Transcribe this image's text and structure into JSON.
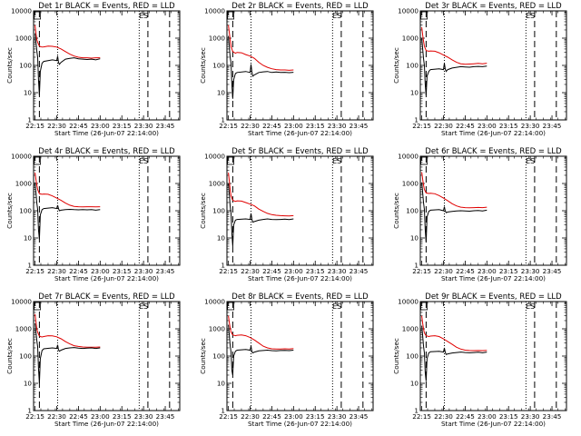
{
  "colors": {
    "events": "#000000",
    "lld": "#e00000",
    "axis": "#000000",
    "background": "#ffffff"
  },
  "x_ticks": [
    {
      "t": 0.0,
      "label": "22:15"
    },
    {
      "t": 0.25,
      "label": "22:30"
    },
    {
      "t": 0.5,
      "label": "22:45"
    },
    {
      "t": 0.75,
      "label": "23:00"
    },
    {
      "t": 1.0,
      "label": "23:15"
    },
    {
      "t": 1.25,
      "label": "23:30"
    },
    {
      "t": 1.5,
      "label": "23:45"
    }
  ],
  "xlim": [
    -0.017,
    1.667
  ],
  "y_ticks": [
    {
      "v": 1,
      "label": "1"
    },
    {
      "v": 10,
      "label": "10"
    },
    {
      "v": 100,
      "label": "100"
    },
    {
      "v": 1000,
      "label": "1000"
    },
    {
      "v": 10000,
      "label": "10000"
    }
  ],
  "ylim": [
    1,
    10000
  ],
  "y_scale": "log",
  "xlabel": "Start Time (26-Jun-07 22:14:00)",
  "ylabel": "Counts/sec",
  "markers": {
    "dashed": [
      0.05,
      1.3,
      1.55
    ],
    "dotted": [
      0.26,
      1.2
    ],
    "es_label": "ES",
    "es_time": 1.25,
    "small_box_time": 0.0
  },
  "chart_data": [
    {
      "type": "line",
      "title": "Det 1r BLACK = Events, RED = LLD",
      "series": [
        {
          "x": [
            0.0,
            0.01,
            0.02,
            0.03,
            0.045,
            0.06,
            0.08,
            0.1,
            0.15,
            0.2,
            0.25,
            0.3,
            0.35,
            0.4,
            0.45,
            0.5,
            0.55,
            0.6,
            0.65,
            0.7,
            0.75
          ],
          "values": [
            3000,
            1500,
            900,
            700,
            550,
            490,
            470,
            480,
            510,
            500,
            470,
            400,
            320,
            260,
            220,
            200,
            190,
            190,
            185,
            190,
            190
          ]
        },
        {
          "x": [
            0.0,
            0.01,
            0.02,
            0.03,
            0.04,
            0.05,
            0.06,
            0.08,
            0.1,
            0.2,
            0.25,
            0.26,
            0.27,
            0.28,
            0.3,
            0.35,
            0.4,
            0.45,
            0.5,
            0.55,
            0.6,
            0.65,
            0.7,
            0.75
          ],
          "values": [
            1500,
            700,
            350,
            200,
            30,
            8,
            60,
            120,
            140,
            160,
            150,
            220,
            130,
            110,
            130,
            170,
            180,
            190,
            175,
            170,
            165,
            170,
            160,
            175
          ]
        }
      ]
    },
    {
      "type": "line",
      "title": "Det 2r BLACK = Events, RED = LLD",
      "series": [
        {
          "x": [
            0.0,
            0.01,
            0.02,
            0.03,
            0.05,
            0.08,
            0.1,
            0.15,
            0.2,
            0.25,
            0.3,
            0.35,
            0.4,
            0.45,
            0.5,
            0.55,
            0.6,
            0.65,
            0.7,
            0.75
          ],
          "values": [
            3000,
            1600,
            900,
            500,
            320,
            280,
            300,
            290,
            250,
            220,
            180,
            130,
            100,
            85,
            75,
            70,
            68,
            68,
            66,
            68
          ]
        },
        {
          "x": [
            0.0,
            0.01,
            0.02,
            0.03,
            0.04,
            0.05,
            0.06,
            0.08,
            0.1,
            0.2,
            0.25,
            0.26,
            0.27,
            0.28,
            0.3,
            0.35,
            0.4,
            0.45,
            0.5,
            0.55,
            0.6,
            0.65,
            0.7,
            0.75
          ],
          "values": [
            1200,
            500,
            200,
            120,
            20,
            6,
            30,
            50,
            55,
            60,
            55,
            110,
            60,
            40,
            45,
            55,
            58,
            60,
            55,
            57,
            55,
            56,
            54,
            56
          ]
        }
      ]
    },
    {
      "type": "line",
      "title": "Det 3r BLACK = Events, RED = LLD",
      "series": [
        {
          "x": [
            0.0,
            0.01,
            0.02,
            0.03,
            0.05,
            0.08,
            0.1,
            0.15,
            0.2,
            0.25,
            0.3,
            0.35,
            0.4,
            0.45,
            0.5,
            0.55,
            0.6,
            0.65,
            0.7,
            0.75
          ],
          "values": [
            2500,
            1300,
            800,
            500,
            350,
            330,
            340,
            330,
            290,
            240,
            200,
            160,
            130,
            115,
            110,
            112,
            115,
            118,
            115,
            120
          ]
        },
        {
          "x": [
            0.0,
            0.01,
            0.02,
            0.03,
            0.04,
            0.05,
            0.06,
            0.08,
            0.1,
            0.2,
            0.25,
            0.26,
            0.27,
            0.28,
            0.3,
            0.35,
            0.4,
            0.45,
            0.5,
            0.55,
            0.6,
            0.65,
            0.7,
            0.75
          ],
          "values": [
            1000,
            400,
            180,
            100,
            20,
            8,
            40,
            60,
            70,
            75,
            70,
            120,
            75,
            60,
            70,
            80,
            85,
            90,
            88,
            86,
            90,
            92,
            90,
            95
          ]
        }
      ]
    },
    {
      "type": "line",
      "title": "Det 4r BLACK = Events, RED = LLD",
      "series": [
        {
          "x": [
            0.0,
            0.01,
            0.02,
            0.03,
            0.05,
            0.08,
            0.1,
            0.15,
            0.2,
            0.25,
            0.3,
            0.35,
            0.4,
            0.45,
            0.5,
            0.55,
            0.6,
            0.65,
            0.7,
            0.75
          ],
          "values": [
            2500,
            1400,
            900,
            600,
            420,
            400,
            410,
            400,
            350,
            290,
            240,
            190,
            160,
            145,
            140,
            138,
            140,
            140,
            138,
            140
          ]
        },
        {
          "x": [
            0.0,
            0.01,
            0.02,
            0.03,
            0.04,
            0.05,
            0.06,
            0.08,
            0.1,
            0.2,
            0.25,
            0.26,
            0.27,
            0.28,
            0.3,
            0.35,
            0.4,
            0.45,
            0.5,
            0.55,
            0.6,
            0.65,
            0.7,
            0.75
          ],
          "values": [
            1100,
            450,
            200,
            110,
            20,
            9,
            70,
            110,
            120,
            130,
            120,
            160,
            120,
            100,
            105,
            110,
            112,
            110,
            108,
            110,
            108,
            110,
            105,
            110
          ]
        }
      ]
    },
    {
      "type": "line",
      "title": "Det 5r BLACK = Events, RED = LLD",
      "series": [
        {
          "x": [
            0.0,
            0.01,
            0.02,
            0.03,
            0.05,
            0.08,
            0.1,
            0.15,
            0.2,
            0.25,
            0.3,
            0.35,
            0.4,
            0.45,
            0.5,
            0.55,
            0.6,
            0.65,
            0.7,
            0.75
          ],
          "values": [
            2500,
            1200,
            600,
            350,
            240,
            220,
            230,
            225,
            200,
            175,
            150,
            115,
            95,
            80,
            72,
            68,
            66,
            65,
            64,
            66
          ]
        },
        {
          "x": [
            0.0,
            0.01,
            0.02,
            0.03,
            0.04,
            0.05,
            0.06,
            0.08,
            0.1,
            0.2,
            0.25,
            0.26,
            0.27,
            0.28,
            0.3,
            0.35,
            0.4,
            0.45,
            0.5,
            0.55,
            0.6,
            0.65,
            0.7,
            0.75
          ],
          "values": [
            1000,
            400,
            150,
            80,
            15,
            5,
            30,
            45,
            48,
            50,
            48,
            80,
            50,
            38,
            40,
            45,
            48,
            50,
            48,
            47,
            48,
            49,
            47,
            50
          ]
        }
      ]
    },
    {
      "type": "line",
      "title": "Det 6r BLACK = Events, RED = LLD",
      "series": [
        {
          "x": [
            0.0,
            0.01,
            0.02,
            0.03,
            0.05,
            0.08,
            0.1,
            0.15,
            0.2,
            0.25,
            0.3,
            0.35,
            0.4,
            0.45,
            0.5,
            0.55,
            0.6,
            0.65,
            0.7,
            0.75
          ],
          "values": [
            2600,
            1400,
            900,
            600,
            450,
            430,
            440,
            420,
            360,
            290,
            230,
            180,
            150,
            135,
            130,
            128,
            130,
            132,
            130,
            135
          ]
        },
        {
          "x": [
            0.0,
            0.01,
            0.02,
            0.03,
            0.04,
            0.05,
            0.06,
            0.08,
            0.1,
            0.2,
            0.25,
            0.26,
            0.27,
            0.28,
            0.3,
            0.35,
            0.4,
            0.45,
            0.5,
            0.55,
            0.6,
            0.65,
            0.7,
            0.75
          ],
          "values": [
            1100,
            450,
            200,
            110,
            20,
            7,
            60,
            95,
            105,
            110,
            100,
            140,
            100,
            85,
            90,
            95,
            98,
            100,
            98,
            96,
            100,
            102,
            98,
            105
          ]
        }
      ]
    },
    {
      "type": "line",
      "title": "Det 7r BLACK = Events, RED = LLD",
      "series": [
        {
          "x": [
            0.0,
            0.01,
            0.02,
            0.03,
            0.045,
            0.06,
            0.08,
            0.1,
            0.15,
            0.2,
            0.25,
            0.3,
            0.35,
            0.4,
            0.45,
            0.5,
            0.55,
            0.6,
            0.65,
            0.7,
            0.75
          ],
          "values": [
            3500,
            1800,
            1000,
            750,
            580,
            520,
            500,
            520,
            560,
            550,
            510,
            430,
            340,
            280,
            240,
            225,
            215,
            210,
            210,
            212,
            215
          ]
        },
        {
          "x": [
            0.0,
            0.01,
            0.02,
            0.03,
            0.04,
            0.05,
            0.06,
            0.08,
            0.1,
            0.2,
            0.25,
            0.26,
            0.27,
            0.28,
            0.3,
            0.35,
            0.4,
            0.45,
            0.5,
            0.55,
            0.6,
            0.65,
            0.7,
            0.75
          ],
          "values": [
            1600,
            750,
            380,
            220,
            35,
            10,
            80,
            160,
            185,
            200,
            190,
            260,
            170,
            150,
            165,
            190,
            200,
            205,
            195,
            190,
            195,
            200,
            190,
            200
          ]
        }
      ]
    },
    {
      "type": "line",
      "title": "Det 8r BLACK = Events, RED = LLD",
      "series": [
        {
          "x": [
            0.0,
            0.01,
            0.02,
            0.03,
            0.05,
            0.08,
            0.1,
            0.15,
            0.2,
            0.25,
            0.3,
            0.35,
            0.4,
            0.45,
            0.5,
            0.55,
            0.6,
            0.65,
            0.7,
            0.75
          ],
          "values": [
            3000,
            1700,
            1100,
            750,
            600,
            560,
            580,
            600,
            560,
            480,
            390,
            300,
            230,
            200,
            185,
            180,
            180,
            185,
            182,
            188
          ]
        },
        {
          "x": [
            0.0,
            0.01,
            0.02,
            0.03,
            0.04,
            0.05,
            0.06,
            0.08,
            0.1,
            0.2,
            0.25,
            0.26,
            0.27,
            0.28,
            0.3,
            0.35,
            0.4,
            0.45,
            0.5,
            0.55,
            0.6,
            0.65,
            0.7,
            0.75
          ],
          "values": [
            1400,
            600,
            250,
            140,
            30,
            20,
            100,
            150,
            165,
            175,
            165,
            230,
            150,
            130,
            140,
            155,
            160,
            165,
            158,
            155,
            160,
            162,
            158,
            165
          ]
        }
      ]
    },
    {
      "type": "line",
      "title": "Det 9r BLACK = Events, RED = LLD",
      "series": [
        {
          "x": [
            0.0,
            0.01,
            0.02,
            0.03,
            0.05,
            0.08,
            0.1,
            0.15,
            0.2,
            0.25,
            0.3,
            0.35,
            0.4,
            0.45,
            0.5,
            0.55,
            0.6,
            0.65,
            0.7,
            0.75
          ],
          "values": [
            3000,
            1600,
            1000,
            700,
            560,
            520,
            540,
            560,
            520,
            430,
            340,
            270,
            210,
            180,
            165,
            160,
            158,
            160,
            158,
            162
          ]
        },
        {
          "x": [
            0.0,
            0.01,
            0.02,
            0.03,
            0.04,
            0.05,
            0.06,
            0.08,
            0.1,
            0.2,
            0.25,
            0.26,
            0.27,
            0.28,
            0.3,
            0.35,
            0.4,
            0.45,
            0.5,
            0.55,
            0.6,
            0.65,
            0.7,
            0.75
          ],
          "values": [
            1300,
            550,
            230,
            130,
            25,
            12,
            80,
            130,
            145,
            150,
            140,
            200,
            140,
            115,
            120,
            130,
            135,
            140,
            135,
            132,
            135,
            138,
            132,
            140
          ]
        }
      ]
    }
  ]
}
